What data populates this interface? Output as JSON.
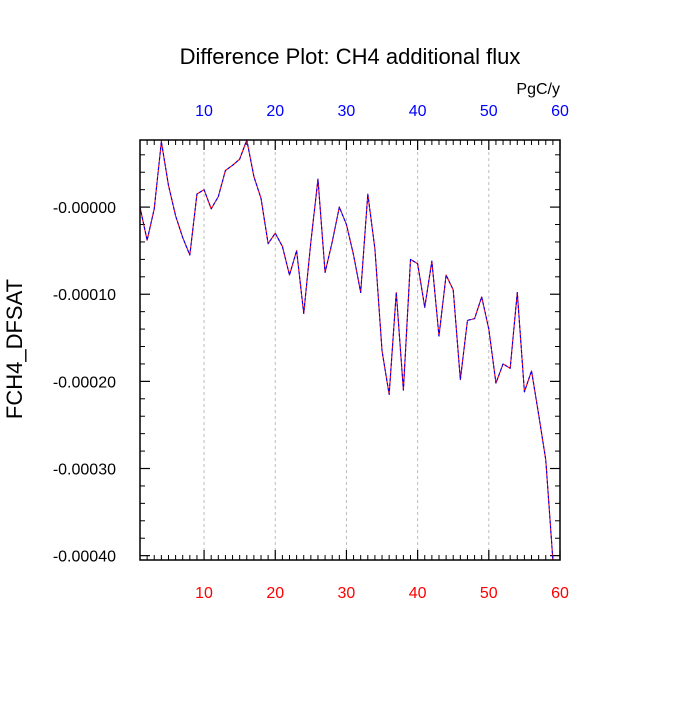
{
  "chart_data": {
    "type": "line",
    "title": "Difference Plot: CH4 additional flux",
    "ylabel": "FCH4_DFSAT",
    "top_axis_unit": "PgC/y",
    "xlim": [
      1,
      60
    ],
    "ylim": [
      -0.000405,
      7.7e-05
    ],
    "x_ticks": [
      10,
      20,
      30,
      40,
      50,
      60
    ],
    "x_tick_labels": [
      "10",
      "20",
      "30",
      "40",
      "50",
      "60"
    ],
    "y_ticks": [
      0,
      -0.0001,
      -0.0002,
      -0.0003,
      -0.0004
    ],
    "y_tick_labels": [
      "-0.00000",
      "-0.00010",
      "-0.00020",
      "-0.00030",
      "-0.00040"
    ],
    "grid": "vertical dashed at major x ticks",
    "colors": {
      "top_tick_labels": "#0000ff",
      "bottom_tick_labels": "#ff0000",
      "series_a": "#ff0000",
      "series_b": "#0000ff",
      "grid": "#bbbbbb",
      "axes": "#000000"
    },
    "series": [
      {
        "line_style": "solid",
        "color": "#ff0000",
        "x": [
          1,
          2,
          3,
          4,
          5,
          6,
          7,
          8,
          9,
          10,
          11,
          12,
          13,
          14,
          15,
          16,
          17,
          18,
          19,
          20,
          21,
          22,
          23,
          24,
          25,
          26,
          27,
          28,
          29,
          30,
          31,
          32,
          33,
          34,
          35,
          36,
          37,
          38,
          39,
          40,
          41,
          42,
          43,
          44,
          45,
          46,
          47,
          48,
          49,
          50,
          51,
          52,
          53,
          54,
          55,
          56,
          57,
          58,
          59
        ],
        "values": [
          0.0,
          -3.8e-05,
          -2e-06,
          7.5e-05,
          2.5e-05,
          -1e-05,
          -3.5e-05,
          -5.5e-05,
          1.5e-05,
          2e-05,
          -2e-06,
          1.2e-05,
          4.2e-05,
          4.8e-05,
          5.5e-05,
          7.7e-05,
          3.5e-05,
          1e-05,
          -4.2e-05,
          -3e-05,
          -4.5e-05,
          -7.8e-05,
          -5e-05,
          -0.000122,
          -4e-05,
          3.2e-05,
          -7.5e-05,
          -4e-05,
          0.0,
          -2e-05,
          -5.5e-05,
          -9.8e-05,
          1.5e-05,
          -4.8e-05,
          -0.000165,
          -0.000215,
          -9.8e-05,
          -0.00021,
          -6e-05,
          -6.5e-05,
          -0.000115,
          -6.2e-05,
          -0.000148,
          -7.8e-05,
          -9.5e-05,
          -0.000198,
          -0.00013,
          -0.000128,
          -0.000103,
          -0.00014,
          -0.000202,
          -0.00018,
          -0.000185,
          -9.8e-05,
          -0.000212,
          -0.000188,
          -0.000238,
          -0.00029,
          -0.000405
        ]
      },
      {
        "line_style": "dashed",
        "color": "#0000ff",
        "x": [
          1,
          2,
          3,
          4,
          5,
          6,
          7,
          8,
          9,
          10,
          11,
          12,
          13,
          14,
          15,
          16,
          17,
          18,
          19,
          20,
          21,
          22,
          23,
          24,
          25,
          26,
          27,
          28,
          29,
          30,
          31,
          32,
          33,
          34,
          35,
          36,
          37,
          38,
          39,
          40,
          41,
          42,
          43,
          44,
          45,
          46,
          47,
          48,
          49,
          50,
          51,
          52,
          53,
          54,
          55,
          56,
          57,
          58,
          59
        ],
        "values": [
          0.0,
          -3.8e-05,
          -2e-06,
          7.5e-05,
          2.5e-05,
          -1e-05,
          -3.5e-05,
          -5.5e-05,
          1.5e-05,
          2e-05,
          -2e-06,
          1.2e-05,
          4.2e-05,
          4.8e-05,
          5.5e-05,
          7.7e-05,
          3.5e-05,
          1e-05,
          -4.2e-05,
          -3e-05,
          -4.5e-05,
          -7.8e-05,
          -5e-05,
          -0.000122,
          -4e-05,
          3.2e-05,
          -7.5e-05,
          -4e-05,
          0.0,
          -2e-05,
          -5.5e-05,
          -9.8e-05,
          1.5e-05,
          -4.8e-05,
          -0.000165,
          -0.000215,
          -9.8e-05,
          -0.00021,
          -6e-05,
          -6.5e-05,
          -0.000115,
          -6.2e-05,
          -0.000148,
          -7.8e-05,
          -9.5e-05,
          -0.000198,
          -0.00013,
          -0.000128,
          -0.000103,
          -0.00014,
          -0.000202,
          -0.00018,
          -0.000185,
          -9.8e-05,
          -0.000212,
          -0.000188,
          -0.000238,
          -0.00029,
          -0.000405
        ]
      }
    ]
  }
}
